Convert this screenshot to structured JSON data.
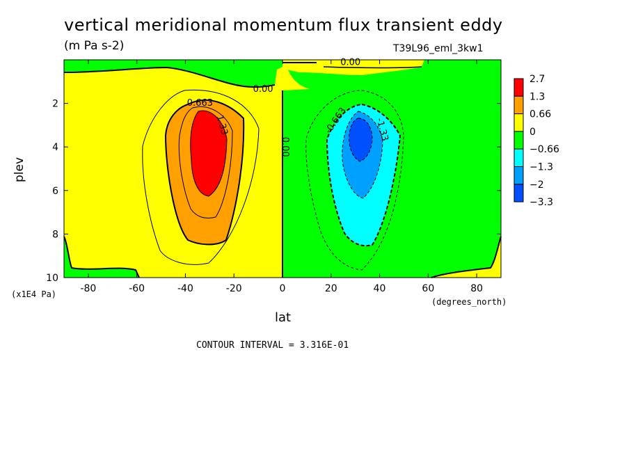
{
  "chart_data": {
    "type": "heatmap",
    "title": "vertical meridional momentum flux transient eddy",
    "units": "(m Pa s-2)",
    "run_label": "T39L96_eml_3kw1",
    "xlabel": "lat",
    "x_units": "(degrees_north)",
    "ylabel": "plev",
    "y_units": "(x1E4 Pa)",
    "xlim": [
      -90,
      90
    ],
    "ylim": [
      10,
      0
    ],
    "x_ticks": [
      -80,
      -60,
      -40,
      -20,
      0,
      20,
      40,
      60,
      80
    ],
    "y_ticks": [
      2,
      4,
      6,
      8,
      10
    ],
    "contour_interval_text": "CONTOUR INTERVAL = 3.316E-01",
    "colorbar": {
      "labels": [
        "2.7",
        "1.3",
        "0.66",
        "0",
        "−0.66",
        "−1.3",
        "−2",
        "−3.3"
      ],
      "colors": [
        "#ff0000",
        "#ff9f00",
        "#ffff00",
        "#00ff00",
        "#00ffff",
        "#00a0ff",
        "#0050ff"
      ]
    },
    "features": [
      {
        "name": "southern positive maximum",
        "lat": -31,
        "plev": 4.0,
        "value": 1.7
      },
      {
        "name": "northern negative minimum",
        "lat": 31,
        "plev": 3.7,
        "value": -2.1
      }
    ],
    "contour_labels": [
      {
        "text": "0.663",
        "lat": -34,
        "plev": 2.0
      },
      {
        "text": "1.33",
        "lat": -25,
        "plev": 3.0
      },
      {
        "text": "0.00",
        "lat": -8,
        "plev": 1.35
      },
      {
        "text": "0.00",
        "lat": 28,
        "plev": 0.12
      },
      {
        "text": "0.00",
        "lat": 1,
        "plev": 4.0
      },
      {
        "text": "-0.663",
        "lat": 22,
        "plev": 2.8
      },
      {
        "text": "-1.33",
        "lat": 41,
        "plev": 3.2
      }
    ]
  }
}
